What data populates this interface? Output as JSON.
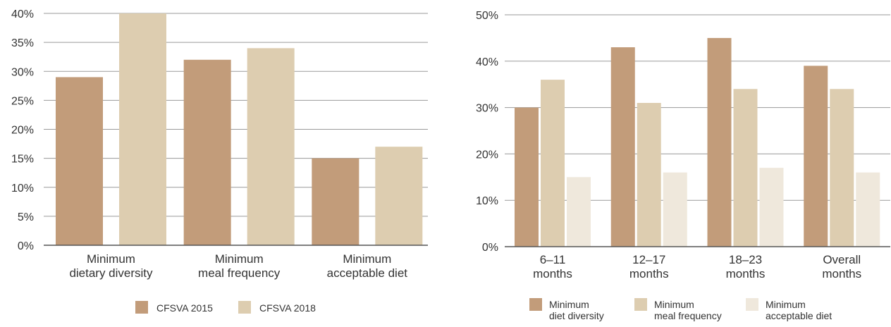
{
  "chart_data": [
    {
      "type": "bar",
      "categories": [
        [
          "Minimum",
          "dietary diversity"
        ],
        [
          "Minimum",
          "meal frequency"
        ],
        [
          "Minimum",
          "acceptable diet"
        ]
      ],
      "series": [
        {
          "name": "CFSVA 2015",
          "values": [
            29,
            32,
            15
          ],
          "color": "#c29c7a"
        },
        {
          "name": "CFSVA 2018",
          "values": [
            40,
            34,
            17
          ],
          "color": "#ddcdb0"
        }
      ],
      "yticks": [
        "0%",
        "5%",
        "10%",
        "15%",
        "20%",
        "25%",
        "30%",
        "35%",
        "40%"
      ],
      "ylim": [
        0,
        40
      ],
      "grid": true,
      "legend": "bottom"
    },
    {
      "type": "bar",
      "categories": [
        [
          "6–11",
          "months"
        ],
        [
          "12–17",
          "months"
        ],
        [
          "18–23",
          "months"
        ],
        [
          "Overall",
          "months"
        ]
      ],
      "series": [
        {
          "name": [
            "Minimum",
            "diet diversity"
          ],
          "values": [
            30,
            43,
            45,
            39
          ],
          "color": "#c29c7a"
        },
        {
          "name": [
            "Minimum",
            "meal frequency"
          ],
          "values": [
            36,
            31,
            34,
            34
          ],
          "color": "#ddcdb0"
        },
        {
          "name": [
            "Minimum",
            "acceptable diet"
          ],
          "values": [
            15,
            16,
            17,
            16
          ],
          "color": "#efe8dc"
        }
      ],
      "yticks": [
        "0%",
        "10%",
        "20%",
        "30%",
        "40%",
        "50%"
      ],
      "ylim": [
        0,
        50
      ],
      "grid": true,
      "legend": "bottom"
    }
  ]
}
